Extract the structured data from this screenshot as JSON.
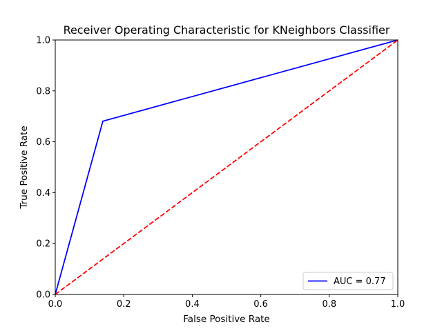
{
  "chart_data": {
    "type": "line",
    "title": "Receiver Operating Characteristic for KNeighbors Classifier",
    "xlabel": "False Positive Rate",
    "ylabel": "True Positive Rate",
    "xlim": [
      0,
      1
    ],
    "ylim": [
      0,
      1
    ],
    "xticks": [
      "0.0",
      "0.2",
      "0.4",
      "0.6",
      "0.8",
      "1.0"
    ],
    "yticks": [
      "0.0",
      "0.2",
      "0.4",
      "0.6",
      "0.8",
      "1.0"
    ],
    "grid": false,
    "legend_position": "bottom-right",
    "series": [
      {
        "name": "AUC = 0.77",
        "x": [
          0,
          0.139,
          1
        ],
        "y": [
          0,
          0.681,
          1
        ],
        "color": "#0000ff",
        "style": "solid"
      },
      {
        "x": [
          0,
          1
        ],
        "y": [
          0,
          1
        ],
        "color": "#ff0000",
        "style": "dashed"
      }
    ]
  }
}
